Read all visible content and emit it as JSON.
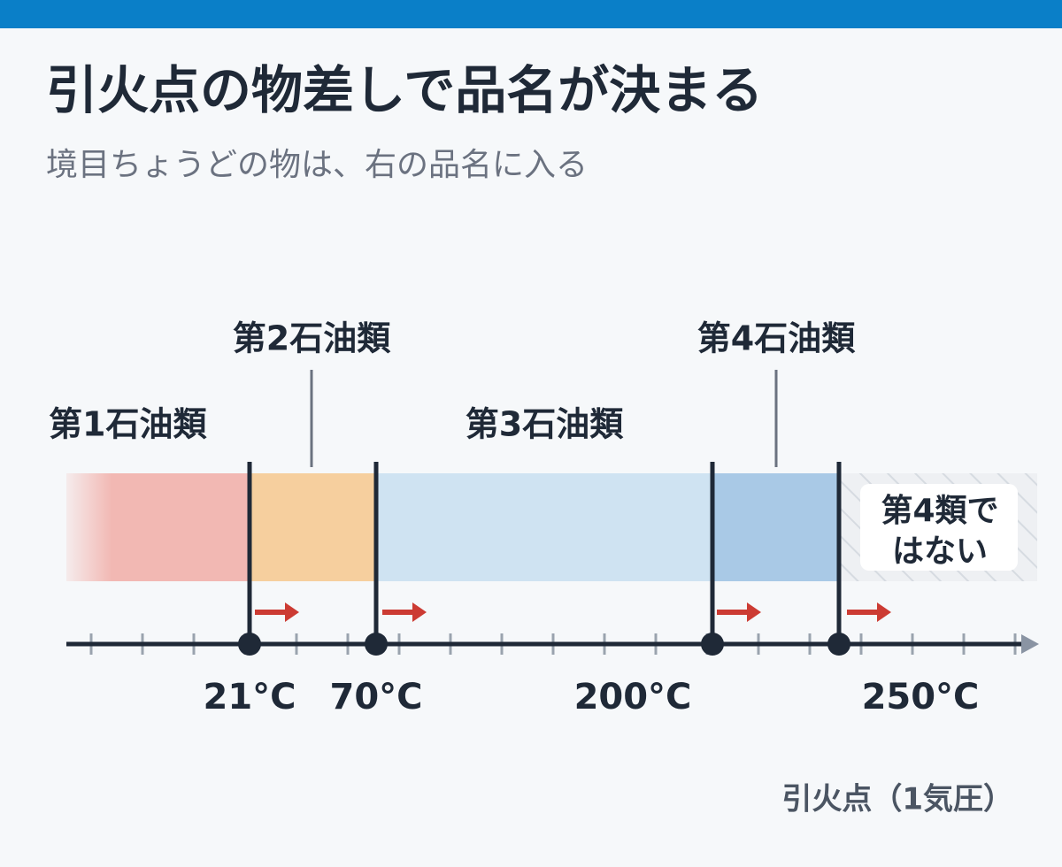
{
  "header": {
    "title": "引火点の物差しで品名が決まる",
    "subtitle": "境目ちょうどの物は、右の品名に入る"
  },
  "bands": [
    {
      "label": "第1石油類"
    },
    {
      "label": "第2石油類"
    },
    {
      "label": "第3石油類"
    },
    {
      "label": "第4石油類"
    }
  ],
  "outside": {
    "lines": [
      "第4類で",
      "はない"
    ]
  },
  "boundaries": [
    "21°C",
    "70°C",
    "200°C",
    "250°C"
  ],
  "axis": {
    "label": "引火点（1気圧）"
  }
}
